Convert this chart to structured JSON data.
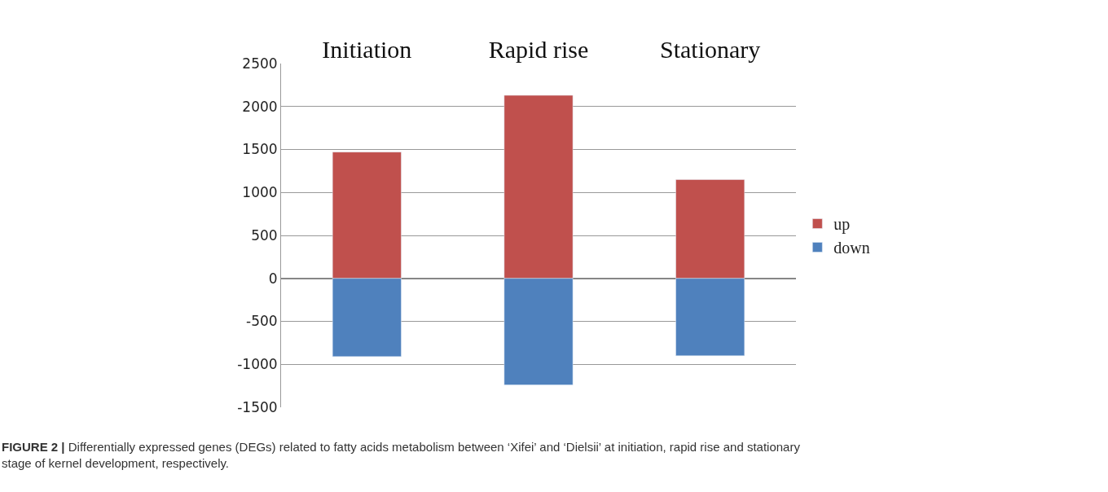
{
  "chart_data": {
    "type": "bar",
    "stacked": true,
    "categories": [
      "Initiation",
      "Rapid rise",
      "Stationary"
    ],
    "series": [
      {
        "name": "up",
        "color": "#c0504d",
        "values": [
          1470,
          2130,
          1150
        ]
      },
      {
        "name": "down",
        "color": "#4f81bd",
        "values": [
          -910,
          -1240,
          -900
        ]
      }
    ],
    "ylim": [
      -1500,
      2500
    ],
    "yticks": [
      -1500,
      -1000,
      -500,
      0,
      500,
      1000,
      1500,
      2000,
      2500
    ],
    "grid": "y",
    "legend": "right",
    "annotations": [
      "FIGURE 2 | Differentially expressed genes (DEGs) related to fatty acids metabolism between ‘Xifei’ and ‘Dielsii’ at initiation, rapid rise and stationary stage of kernel development, respectively."
    ]
  }
}
